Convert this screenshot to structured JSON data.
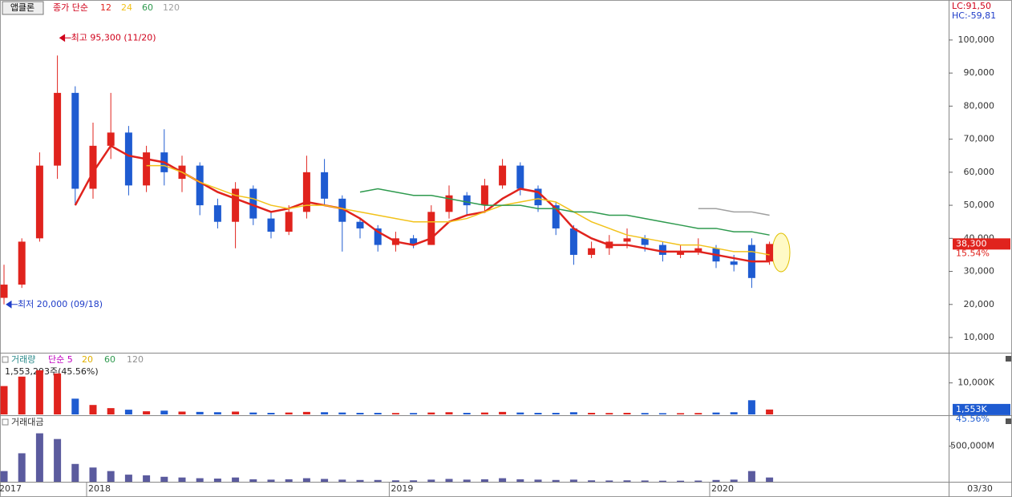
{
  "chart_data": [
    {
      "type": "candlestick",
      "title": "앱클론",
      "legend_title": "종가 단순",
      "lc_label": "LC:91,50",
      "hc_label": "HC:-59,81",
      "annotations": [
        {
          "text": "최고 95,300 (11/20)",
          "color": "#d0021b"
        },
        {
          "text": "최저 20,000 (09/18)",
          "color": "#1e3cc8"
        }
      ],
      "open": [
        22000,
        26000,
        40000,
        62000,
        84000,
        55000,
        68000,
        72000,
        56000,
        66000,
        58000,
        62000,
        50000,
        45000,
        55000,
        46000,
        42000,
        48000,
        60000,
        52000,
        45000,
        43000,
        38000,
        40000,
        38000,
        48000,
        53000,
        50000,
        56000,
        62000,
        55000,
        50000,
        43000,
        35000,
        37000,
        39000,
        40000,
        38000,
        35000,
        36000,
        37000,
        33000,
        38000,
        33000
      ],
      "high": [
        32000,
        40000,
        66000,
        95300,
        86000,
        75000,
        84000,
        74000,
        68000,
        73000,
        65000,
        63000,
        52000,
        57000,
        56000,
        48000,
        50000,
        65000,
        64000,
        53000,
        46000,
        44000,
        42000,
        41000,
        50000,
        56000,
        54000,
        58000,
        64000,
        63000,
        56000,
        51000,
        44000,
        39000,
        41000,
        43000,
        41000,
        39000,
        38000,
        40000,
        38000,
        35000,
        40000,
        39000
      ],
      "low": [
        20000,
        25000,
        39000,
        58000,
        50000,
        52000,
        64000,
        53000,
        54000,
        56000,
        54000,
        47000,
        43000,
        37000,
        44000,
        40000,
        41000,
        46000,
        50000,
        36000,
        40000,
        36000,
        36000,
        37000,
        38000,
        46000,
        47000,
        48000,
        55000,
        53000,
        48000,
        41000,
        32000,
        34000,
        35000,
        37000,
        36000,
        33000,
        34000,
        35000,
        31000,
        30000,
        25000,
        32000
      ],
      "close": [
        26000,
        39000,
        62000,
        84000,
        55000,
        68000,
        72000,
        56000,
        66000,
        60000,
        62000,
        50000,
        45000,
        55000,
        46000,
        42000,
        48000,
        60000,
        52000,
        45000,
        43000,
        38000,
        40000,
        38000,
        48000,
        53000,
        50000,
        56000,
        62000,
        55000,
        50000,
        43000,
        35000,
        37000,
        39000,
        40000,
        38000,
        35000,
        36000,
        37000,
        33000,
        32000,
        28000,
        38300
      ],
      "up_color": "#e0231d",
      "down_color": "#1e5bd1",
      "series": [
        {
          "name": "12",
          "color": "#e0231d",
          "values": [
            null,
            null,
            null,
            null,
            50000,
            60000,
            68000,
            65000,
            64000,
            63000,
            60000,
            57000,
            54000,
            52000,
            50000,
            48000,
            49000,
            51000,
            50000,
            49000,
            46000,
            42000,
            39000,
            38000,
            40000,
            45000,
            47000,
            48000,
            52000,
            55000,
            54000,
            49000,
            43000,
            40000,
            38000,
            38000,
            37000,
            36000,
            36000,
            36000,
            35000,
            34000,
            33000,
            33000
          ]
        },
        {
          "name": "24",
          "color": "#f2c21a",
          "values": [
            null,
            null,
            null,
            null,
            null,
            null,
            null,
            null,
            62000,
            62000,
            60000,
            57000,
            55000,
            53000,
            52000,
            50000,
            49000,
            50000,
            50000,
            49000,
            48000,
            47000,
            46000,
            45000,
            45000,
            45000,
            46000,
            48000,
            50000,
            51000,
            52000,
            51000,
            48000,
            45000,
            43000,
            41000,
            40000,
            39000,
            38000,
            38000,
            37000,
            36000,
            36000,
            35000
          ]
        },
        {
          "name": "60",
          "color": "#2e9a4e",
          "values": [
            null,
            null,
            null,
            null,
            null,
            null,
            null,
            null,
            null,
            null,
            null,
            null,
            null,
            null,
            null,
            null,
            null,
            null,
            null,
            null,
            54000,
            55000,
            54000,
            53000,
            53000,
            52000,
            51000,
            50000,
            50000,
            50000,
            49000,
            49000,
            48000,
            48000,
            47000,
            47000,
            46000,
            45000,
            44000,
            43000,
            43000,
            42000,
            42000,
            41000
          ]
        },
        {
          "name": "120",
          "color": "#a0a0a0",
          "values": [
            null,
            null,
            null,
            null,
            null,
            null,
            null,
            null,
            null,
            null,
            null,
            null,
            null,
            null,
            null,
            null,
            null,
            null,
            null,
            null,
            null,
            null,
            null,
            null,
            null,
            null,
            null,
            null,
            null,
            null,
            null,
            null,
            null,
            null,
            null,
            null,
            null,
            null,
            null,
            49000,
            49000,
            48000,
            48000,
            47000
          ]
        }
      ],
      "ylim": [
        5400,
        112100
      ],
      "yticks": [
        {
          "value": 10000,
          "label": "10,000"
        },
        {
          "value": 20000,
          "label": "20,000"
        },
        {
          "value": 30000,
          "label": "30,000"
        },
        {
          "value": 40000,
          "label": "40,000"
        },
        {
          "value": 50000,
          "label": "50,000"
        },
        {
          "value": 60000,
          "label": "60,000"
        },
        {
          "value": 70000,
          "label": "70,000"
        },
        {
          "value": 80000,
          "label": "80,000"
        },
        {
          "value": 90000,
          "label": "90,000"
        },
        {
          "value": 100000,
          "label": "100,000"
        }
      ],
      "last_value": 38300,
      "last_label": "38,300",
      "change_label": "15.54%"
    },
    {
      "type": "bar",
      "title": "거래량",
      "legend_items": [
        {
          "text": "단순 5",
          "color": "#c000c0"
        },
        {
          "text": "20",
          "color": "#e0b000"
        },
        {
          "text": "60",
          "color": "#2e9a4e"
        },
        {
          "text": "120",
          "color": "#909090"
        }
      ],
      "info_label": "1,553,293주(45.56%)",
      "values": [
        9000000,
        12000000,
        14000000,
        13000000,
        5000000,
        3000000,
        2000000,
        1500000,
        1000000,
        1200000,
        900000,
        800000,
        700000,
        900000,
        600000,
        500000,
        600000,
        800000,
        700000,
        600000,
        500000,
        500000,
        450000,
        450000,
        600000,
        700000,
        500000,
        600000,
        800000,
        600000,
        500000,
        500000,
        700000,
        500000,
        450000,
        500000,
        450000,
        400000,
        400000,
        450000,
        600000,
        700000,
        4500000,
        1553293
      ],
      "ylim": [
        0,
        15000000
      ],
      "yticks": [
        {
          "value": 10000000,
          "label": "10,000K"
        }
      ],
      "last_value": 1553293,
      "last_label": "1,553K",
      "change_label": "45.56%"
    },
    {
      "type": "bar",
      "title": "거래대금",
      "color": "#5b5b9e",
      "values": [
        150000,
        400000,
        680000,
        600000,
        250000,
        200000,
        150000,
        100000,
        90000,
        70000,
        60000,
        50000,
        45000,
        60000,
        35000,
        30000,
        35000,
        50000,
        40000,
        30000,
        25000,
        25000,
        20000,
        20000,
        30000,
        40000,
        30000,
        35000,
        50000,
        35000,
        30000,
        25000,
        30000,
        20000,
        18000,
        20000,
        18000,
        15000,
        15000,
        17000,
        25000,
        30000,
        150000,
        60000
      ],
      "ylim": [
        0,
        900000
      ],
      "yticks": [
        {
          "value": 500000,
          "label": "500,000M"
        }
      ],
      "categories": [
        "2017",
        null,
        null,
        null,
        null,
        "2018",
        null,
        null,
        null,
        null,
        null,
        null,
        null,
        null,
        null,
        null,
        null,
        null,
        null,
        null,
        null,
        null,
        "2019",
        null,
        null,
        null,
        null,
        null,
        null,
        null,
        null,
        null,
        null,
        null,
        null,
        null,
        null,
        null,
        null,
        null,
        "2020",
        null,
        null,
        null
      ],
      "cursor_label": "03/30"
    }
  ]
}
